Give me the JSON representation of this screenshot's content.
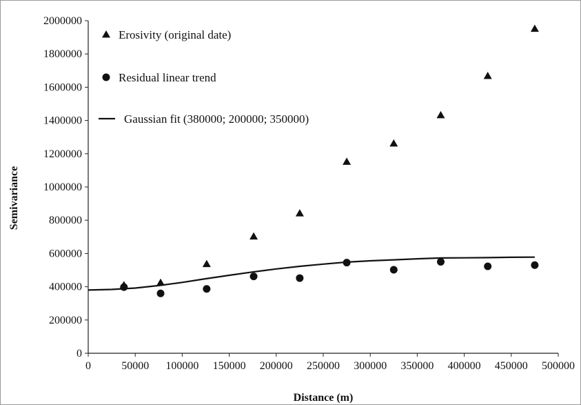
{
  "chart_data": {
    "type": "scatter",
    "title": "",
    "xlabel": "Distance (m)",
    "ylabel": "Semivariance",
    "xlim": [
      0,
      500000
    ],
    "ylim": [
      0,
      2000000
    ],
    "xticks": [
      0,
      50000,
      100000,
      150000,
      200000,
      250000,
      300000,
      350000,
      400000,
      450000,
      500000
    ],
    "yticks": [
      0,
      200000,
      400000,
      600000,
      800000,
      1000000,
      1200000,
      1400000,
      1600000,
      1800000,
      2000000
    ],
    "grid": false,
    "legend_position": "top-left",
    "series": [
      {
        "name": "Erosivity (original date)",
        "marker": "triangle",
        "color": "#111111",
        "x": [
          38000,
          77000,
          126000,
          176000,
          225000,
          275000,
          325000,
          375000,
          425000,
          475000
        ],
        "y": [
          410000,
          425000,
          537000,
          703000,
          842000,
          1152000,
          1262000,
          1432000,
          1668000,
          1952000
        ]
      },
      {
        "name": "Residual linear trend",
        "marker": "circle",
        "color": "#111111",
        "x": [
          38000,
          77000,
          126000,
          176000,
          225000,
          275000,
          325000,
          375000,
          425000,
          475000
        ],
        "y": [
          398000,
          360000,
          387000,
          462000,
          452000,
          545000,
          502000,
          550000,
          523000,
          530000
        ]
      },
      {
        "name": "Gaussian fit (380000; 200000; 350000)",
        "marker": "line",
        "color": "#111111",
        "x": [
          0,
          25000,
          50000,
          75000,
          100000,
          125000,
          150000,
          175000,
          200000,
          225000,
          250000,
          275000,
          300000,
          325000,
          350000,
          375000,
          400000,
          425000,
          450000,
          475000
        ],
        "y": [
          380000,
          384000,
          392000,
          407000,
          426000,
          448000,
          469000,
          489000,
          507000,
          523000,
          536000,
          548000,
          556000,
          562000,
          568000,
          573000,
          574000,
          575000,
          577000,
          578000
        ]
      }
    ]
  }
}
